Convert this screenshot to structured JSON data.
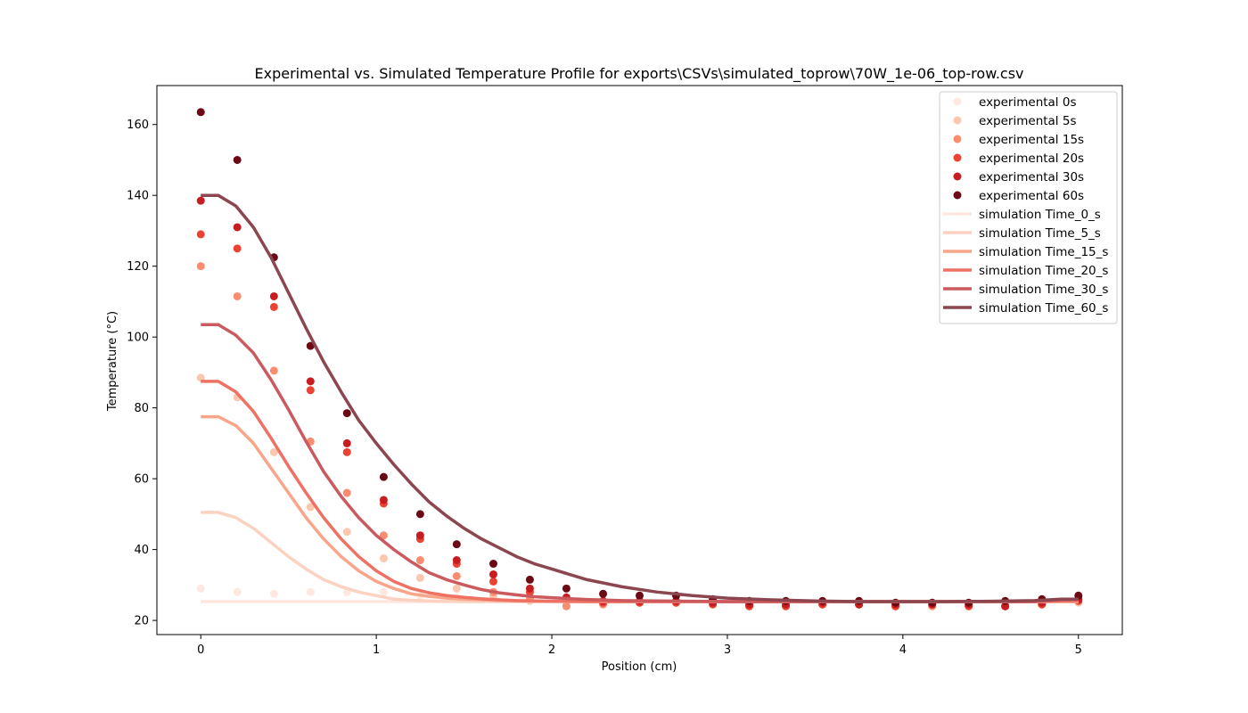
{
  "chart_data": {
    "type": "scatter",
    "title": "Experimental vs. Simulated Temperature Profile for exports\\CSVs\\simulated_toprow\\70W_1e-06_top-row.csv",
    "xlabel": "Position (cm)",
    "ylabel": "Temperature (°C)",
    "xlim": [
      -0.25,
      5.25
    ],
    "ylim": [
      16,
      171
    ],
    "xticks": [
      0,
      1,
      2,
      3,
      4,
      5
    ],
    "yticks": [
      20,
      40,
      60,
      80,
      100,
      120,
      140,
      160
    ],
    "grid": false,
    "legend_position": "top-right",
    "experimental_x": [
      0,
      0.208,
      0.417,
      0.625,
      0.833,
      1.042,
      1.25,
      1.458,
      1.667,
      1.875,
      2.083,
      2.292,
      2.5,
      2.708,
      2.917,
      3.125,
      3.333,
      3.542,
      3.75,
      3.958,
      4.167,
      4.375,
      4.583,
      4.792,
      5.0
    ],
    "experimental_series": [
      {
        "name": "experimental 0s",
        "color": "#fee8df",
        "values": [
          29,
          28,
          27.5,
          28,
          28,
          28,
          27,
          26.5,
          26,
          25.5,
          25,
          25,
          25,
          25,
          25,
          24.5,
          24.5,
          24.5,
          24.5,
          24.5,
          24.5,
          24.5,
          24.5,
          24.8,
          25.5
        ]
      },
      {
        "name": "experimental 5s",
        "color": "#fcc7ae",
        "values": [
          88.5,
          83,
          67.5,
          52,
          45,
          37.5,
          32,
          29,
          27,
          25.5,
          24,
          25,
          25,
          25,
          25,
          24.5,
          24,
          24.5,
          24.5,
          24,
          24,
          24,
          24,
          24.5,
          25
        ]
      },
      {
        "name": "experimental 15s",
        "color": "#f98d6f",
        "values": [
          120,
          111.5,
          90.5,
          70.5,
          56,
          44,
          37,
          32.5,
          28,
          26,
          24,
          24.5,
          25,
          25,
          25,
          24,
          24,
          24.5,
          24.5,
          24,
          24,
          24,
          24,
          24.5,
          25.5
        ]
      },
      {
        "name": "experimental 20s",
        "color": "#ea4333",
        "values": [
          129,
          125,
          108.5,
          85,
          67.5,
          53,
          43,
          36,
          31,
          28,
          26,
          25,
          25,
          25,
          24.5,
          24,
          24,
          24.5,
          24.5,
          24,
          24.5,
          24,
          24,
          24.5,
          25.5
        ]
      },
      {
        "name": "experimental 30s",
        "color": "#c81d20",
        "values": [
          138.5,
          131,
          111.5,
          87.5,
          70,
          54,
          44,
          37,
          33,
          29,
          26.5,
          25.5,
          25.5,
          25.5,
          25,
          24.5,
          24.5,
          25,
          24.5,
          24.5,
          24.5,
          24.5,
          24,
          25,
          26
        ]
      },
      {
        "name": "experimental 60s",
        "color": "#6b0a14",
        "values": [
          163.5,
          150,
          122.5,
          97.5,
          78.5,
          60.5,
          50,
          41.5,
          36,
          31.5,
          29,
          27.5,
          27,
          27,
          26,
          25.5,
          25.5,
          25.5,
          25.5,
          25,
          25,
          25,
          25.5,
          26,
          27
        ]
      }
    ],
    "simulation_x": [
      0,
      0.1,
      0.2,
      0.3,
      0.4,
      0.5,
      0.6,
      0.7,
      0.8,
      0.9,
      1.0,
      1.1,
      1.2,
      1.3,
      1.4,
      1.5,
      1.6,
      1.7,
      1.8,
      1.9,
      2.0,
      2.2,
      2.4,
      2.6,
      2.8,
      3.0,
      3.25,
      3.5,
      3.75,
      4.0,
      4.25,
      4.5,
      4.75,
      4.9,
      5.0
    ],
    "simulation_series": [
      {
        "name": "simulation Time_0_s",
        "color": "#fde6e0",
        "values": [
          25.3,
          25.3,
          25.3,
          25.3,
          25.3,
          25.3,
          25.3,
          25.3,
          25.3,
          25.3,
          25.3,
          25.3,
          25.3,
          25.3,
          25.3,
          25.3,
          25.3,
          25.3,
          25.3,
          25.3,
          25.3,
          25.3,
          25.3,
          25.3,
          25.3,
          25.3,
          25.3,
          25.3,
          25.3,
          25.3,
          25.3,
          25.3,
          25.3,
          25.3,
          25.3
        ]
      },
      {
        "name": "simulation Time_5_s",
        "color": "#fbd2c0",
        "values": [
          50.5,
          50.5,
          49,
          46,
          42,
          38,
          34.5,
          31.5,
          29.5,
          28,
          27,
          26,
          25.7,
          25.5,
          25.4,
          25.3,
          25.3,
          25.3,
          25.3,
          25.3,
          25.3,
          25.3,
          25.3,
          25.3,
          25.3,
          25.3,
          25.3,
          25.3,
          25.3,
          25.3,
          25.3,
          25.3,
          25.3,
          25.3,
          25.3
        ]
      },
      {
        "name": "simulation Time_15_s",
        "color": "#f9a58a",
        "values": [
          77.5,
          77.5,
          75,
          70,
          63,
          56,
          49,
          43,
          38,
          34,
          31,
          29,
          27.5,
          26.8,
          26.3,
          26,
          25.8,
          25.6,
          25.5,
          25.4,
          25.4,
          25.3,
          25.3,
          25.3,
          25.3,
          25.3,
          25.3,
          25.3,
          25.3,
          25.3,
          25.3,
          25.3,
          25.3,
          25.3,
          25.3
        ]
      },
      {
        "name": "simulation Time_20_s",
        "color": "#ee7164",
        "values": [
          87.5,
          87.5,
          84.5,
          79,
          71.5,
          63.5,
          56,
          49,
          43,
          38,
          34,
          31,
          29,
          27.8,
          27,
          26.5,
          26.1,
          25.8,
          25.6,
          25.5,
          25.4,
          25.3,
          25.3,
          25.3,
          25.3,
          25.3,
          25.3,
          25.3,
          25.3,
          25.3,
          25.3,
          25.3,
          25.3,
          25.5,
          25.5
        ]
      },
      {
        "name": "simulation Time_30_s",
        "color": "#cb5a5f",
        "values": [
          103.5,
          103.5,
          100.5,
          95.5,
          88,
          79.5,
          70.5,
          62,
          55,
          49,
          44,
          40,
          36.5,
          33.5,
          31.5,
          30,
          28.7,
          27.8,
          27.2,
          26.7,
          26.4,
          25.9,
          25.6,
          25.5,
          25.4,
          25.3,
          25.3,
          25.3,
          25.3,
          25.3,
          25.3,
          25.3,
          25.3,
          25.8,
          26
        ]
      },
      {
        "name": "simulation Time_60_s",
        "color": "#8c464f",
        "values": [
          140,
          140,
          137,
          131,
          122.5,
          112.5,
          102.5,
          93,
          84.5,
          76.5,
          70,
          64,
          58.5,
          53.5,
          49.5,
          46,
          43,
          40.5,
          38,
          36,
          34.5,
          31.5,
          29.5,
          28,
          27,
          26.3,
          25.8,
          25.5,
          25.3,
          25.3,
          25.3,
          25.4,
          25.6,
          26,
          26
        ]
      }
    ]
  }
}
